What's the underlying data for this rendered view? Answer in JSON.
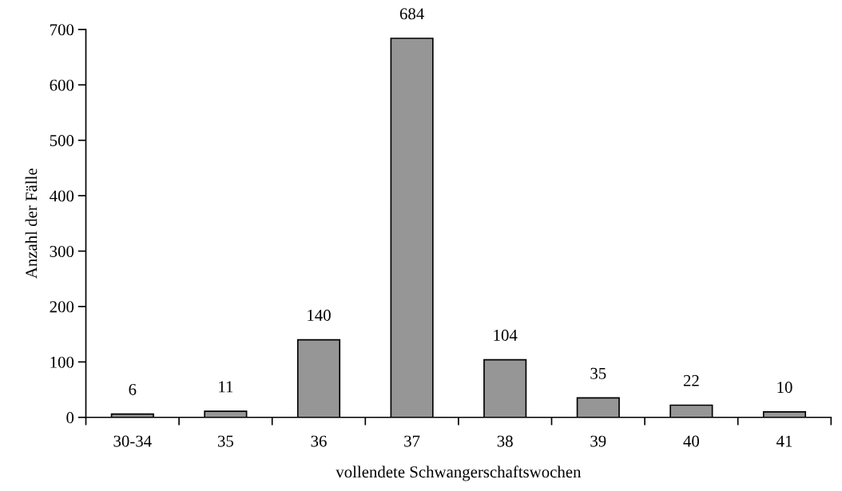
{
  "chart_data": {
    "type": "bar",
    "xlabel": "vollendete Schwangerschaftswochen",
    "ylabel": "Anzahl der Fälle",
    "categories": [
      "30-34",
      "35",
      "36",
      "37",
      "38",
      "39",
      "40",
      "41"
    ],
    "values": [
      6,
      11,
      140,
      684,
      104,
      35,
      22,
      10
    ],
    "color": "#969696",
    "ylim": [
      0,
      700
    ],
    "yticks": [
      0,
      100,
      200,
      300,
      400,
      500,
      600,
      700
    ],
    "data_labels": true,
    "grid": false,
    "legend": false
  }
}
